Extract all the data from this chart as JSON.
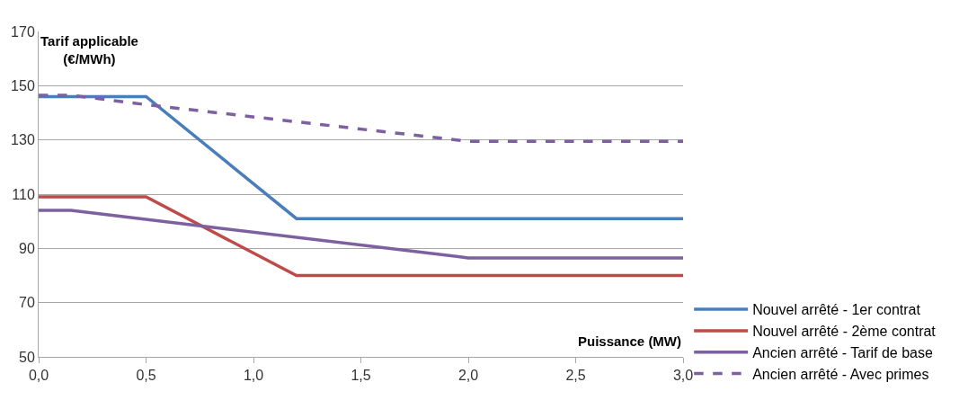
{
  "chart_data": {
    "type": "line",
    "xlabel": "Puissance (MW)",
    "ylabel": "Tarif applicable\n(€/MWh)",
    "series": [
      {
        "name": "Nouvel arrêté - 1er contrat",
        "color": "#4a7ebb",
        "x": [
          0,
          0.5,
          1.2,
          3.0
        ],
        "values": [
          146,
          146,
          101,
          101
        ]
      },
      {
        "name": "Nouvel arrêté - 2ème contrat",
        "color": "#be4b48",
        "x": [
          0,
          0.5,
          1.2,
          3.0
        ],
        "values": [
          109,
          109,
          80,
          80
        ]
      },
      {
        "name": "Ancien arrêté - Tarif de base",
        "color": "#7d60a0",
        "x": [
          0,
          0.15,
          2.0,
          3.0
        ],
        "values": [
          104,
          104,
          86.5,
          86.5
        ]
      },
      {
        "name": "Ancien arrêté - Avec primes",
        "color": "#7d60a0",
        "line_style": "dashed",
        "x": [
          0,
          0.15,
          0.5,
          2.0,
          3.0
        ],
        "values": [
          146.5,
          146.5,
          143,
          129.5,
          129.5
        ]
      }
    ],
    "xlim": [
      0,
      3.0
    ],
    "xticks": [
      {
        "value": 0,
        "label": "0,0"
      },
      {
        "value": 0.5,
        "label": "0,5"
      },
      {
        "value": 1.0,
        "label": "1,0"
      },
      {
        "value": 1.5,
        "label": "1,5"
      },
      {
        "value": 2.0,
        "label": "2,0"
      },
      {
        "value": 2.5,
        "label": "2,5"
      },
      {
        "value": 3.0,
        "label": "3,0"
      }
    ],
    "ylim": [
      50,
      170
    ],
    "yticks": [
      50,
      70,
      90,
      110,
      130,
      150,
      170
    ],
    "grid": "y",
    "legend": "bottom right",
    "marker": "none",
    "line_style": "solid"
  }
}
